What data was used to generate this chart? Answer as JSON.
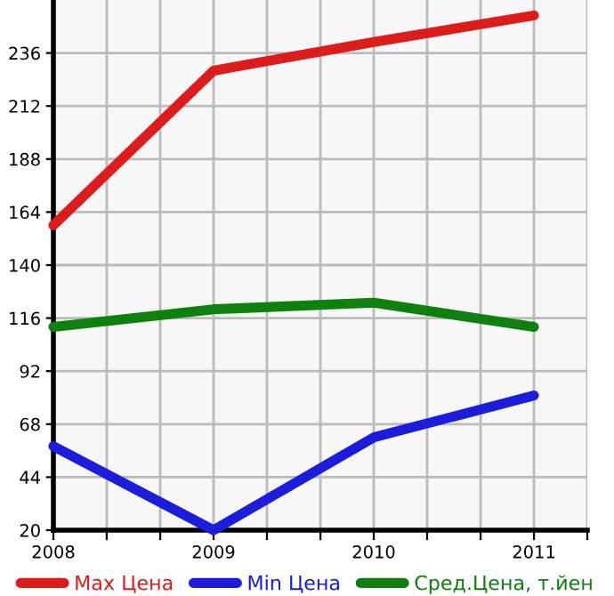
{
  "chart_data": {
    "type": "line",
    "x": [
      2008,
      2009,
      2010,
      2011
    ],
    "series": [
      {
        "name": "Max Цена",
        "color": "#dd1c1c",
        "values": [
          158,
          228,
          241,
          253
        ]
      },
      {
        "name": "Min Цена",
        "color": "#1c1cdd",
        "values": [
          58,
          20,
          62,
          81
        ]
      },
      {
        "name": "Сред.Цена, т.йен",
        "color": "#0e800e",
        "values": [
          112,
          120,
          123,
          112
        ]
      }
    ],
    "xlim": [
      2008,
      2011.333
    ],
    "xticks": [
      {
        "value": 2008,
        "label": "2008"
      },
      {
        "value": 2008.333,
        "label": null
      },
      {
        "value": 2008.667,
        "label": null
      },
      {
        "value": 2009,
        "label": "2009"
      },
      {
        "value": 2009.333,
        "label": null
      },
      {
        "value": 2009.667,
        "label": null
      },
      {
        "value": 2010,
        "label": "2010"
      },
      {
        "value": 2010.333,
        "label": null
      },
      {
        "value": 2010.667,
        "label": null
      },
      {
        "value": 2011,
        "label": "2011"
      },
      {
        "value": 2011.333,
        "label": null
      }
    ],
    "ylim": [
      20,
      260
    ],
    "yticks": [
      20,
      44,
      68,
      92,
      116,
      140,
      164,
      188,
      212,
      236
    ],
    "grid": true,
    "legend": "bottom",
    "marker": "none",
    "line_style": "solid"
  }
}
